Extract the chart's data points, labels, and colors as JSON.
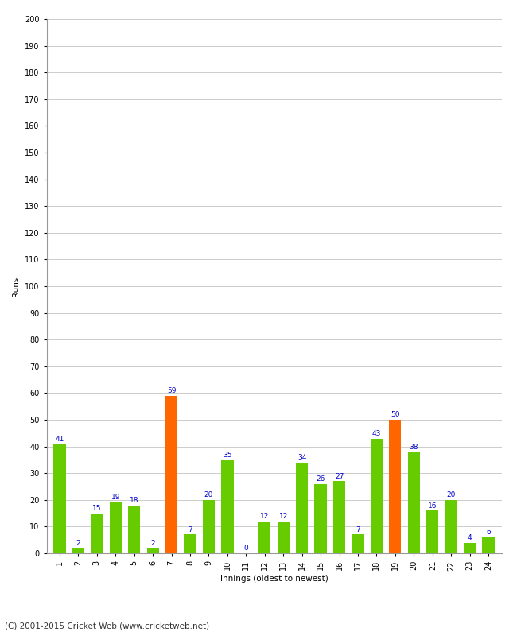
{
  "innings": [
    1,
    2,
    3,
    4,
    5,
    6,
    7,
    8,
    9,
    10,
    11,
    12,
    13,
    14,
    15,
    16,
    17,
    18,
    19,
    20,
    21,
    22,
    23,
    24
  ],
  "runs": [
    41,
    2,
    15,
    19,
    18,
    2,
    59,
    7,
    20,
    35,
    0,
    12,
    12,
    34,
    26,
    27,
    7,
    43,
    50,
    38,
    16,
    20,
    4,
    6
  ],
  "colors": [
    "#66cc00",
    "#66cc00",
    "#66cc00",
    "#66cc00",
    "#66cc00",
    "#66cc00",
    "#ff6600",
    "#66cc00",
    "#66cc00",
    "#66cc00",
    "#66cc00",
    "#66cc00",
    "#66cc00",
    "#66cc00",
    "#66cc00",
    "#66cc00",
    "#66cc00",
    "#66cc00",
    "#ff6600",
    "#66cc00",
    "#66cc00",
    "#66cc00",
    "#66cc00",
    "#66cc00"
  ],
  "xlabel": "Innings (oldest to newest)",
  "ylabel": "Runs",
  "ylim": [
    0,
    200
  ],
  "yticks": [
    0,
    10,
    20,
    30,
    40,
    50,
    60,
    70,
    80,
    90,
    100,
    110,
    120,
    130,
    140,
    150,
    160,
    170,
    180,
    190,
    200
  ],
  "label_color": "#0000cc",
  "label_fontsize": 6.5,
  "axis_label_fontsize": 7.5,
  "tick_fontsize": 7,
  "footer": "(C) 2001-2015 Cricket Web (www.cricketweb.net)",
  "footer_fontsize": 7.5,
  "background_color": "#ffffff",
  "grid_color": "#cccccc",
  "bar_width": 0.65
}
